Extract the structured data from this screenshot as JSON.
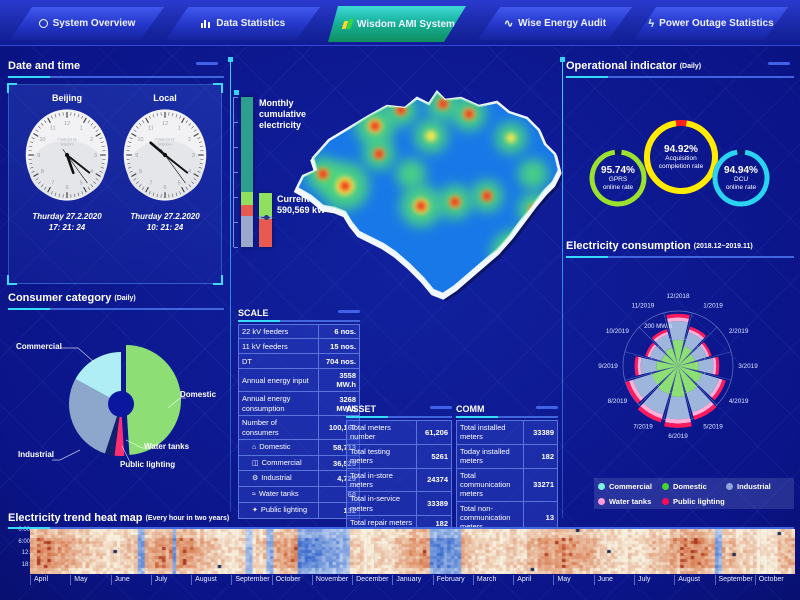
{
  "nav": {
    "tabs": [
      {
        "label": "System Overview",
        "icon": "system-overview-icon"
      },
      {
        "label": "Data Statistics",
        "icon": "bar-chart-icon"
      },
      {
        "label": "Wisdom AMI System",
        "icon": "wisdom-logo-icon",
        "active": true
      },
      {
        "label": "Wise Energy Audit",
        "icon": "pulse-wave-icon"
      },
      {
        "label": "Power Outage Statistics",
        "icon": "lightning-icon"
      }
    ]
  },
  "datetime_panel": {
    "title": "Date and time",
    "clocks": [
      {
        "name": "Beijing",
        "brand1": "Powered by",
        "brand2": "Wisdom",
        "date": "Thurday 27.2.2020",
        "time": "17: 21: 24",
        "h": 17,
        "m": 21,
        "s": 24
      },
      {
        "name": "Local",
        "brand1": "Powered by",
        "brand2": "Wisdom",
        "date": "Thurday 27.2.2020",
        "time": "10: 21: 24",
        "h": 10,
        "m": 21,
        "s": 24
      }
    ]
  },
  "consumer_panel": {
    "title": "Consumer category",
    "subtitle": "(Daily)"
  },
  "operational_panel": {
    "title": "Operational indicator",
    "subtitle": "(Daily)"
  },
  "consumption_panel": {
    "title": "Electricity consumption",
    "subtitle": "(2018.12~2019.11)"
  },
  "heatmap_panel": {
    "title": "Electricity trend heat map",
    "subtitle": "(Every hour in two years)"
  },
  "tables": {
    "scale": {
      "title": "SCALE",
      "rows": [
        {
          "label": "22 kV feeders",
          "value": "6 nos."
        },
        {
          "label": "11 kV feeders",
          "value": "15 nos."
        },
        {
          "label": "DT",
          "value": "704 nos."
        },
        {
          "label": "Annual energy input",
          "value": "3558 MW.h"
        },
        {
          "label": "Annual energy consumption",
          "value": "3268 MW.h"
        },
        {
          "label": "Number of consumers",
          "value": "100,167"
        },
        {
          "label": "Domestic",
          "value": "58,713",
          "indent": true,
          "icon": "house-icon"
        },
        {
          "label": "Commercial",
          "value": "36,525",
          "indent": true,
          "icon": "shop-icon"
        },
        {
          "label": "Industrial",
          "value": "4,729",
          "indent": true,
          "icon": "factory-icon"
        },
        {
          "label": "Water tanks",
          "value": "68",
          "indent": true,
          "icon": "water-icon"
        },
        {
          "label": "Public lighting",
          "value": "132",
          "indent": true,
          "icon": "lamp-icon"
        }
      ]
    },
    "asset": {
      "title": "ASSET",
      "rows": [
        {
          "label": "Total meters number",
          "value": "61,206"
        },
        {
          "label": "Total testing meters",
          "value": "5261"
        },
        {
          "label": "Total in-store meters",
          "value": "24374"
        },
        {
          "label": "Total in-service meters",
          "value": "33389"
        },
        {
          "label": "Total repair meters",
          "value": "182"
        },
        {
          "label": "Total condemned meters",
          "value": "0"
        }
      ]
    },
    "comm": {
      "title": "COMM",
      "rows": [
        {
          "label": "Total installed meters",
          "value": "33389"
        },
        {
          "label": "Today installed meters",
          "value": "182"
        },
        {
          "label": "Total communication meters",
          "value": "33271"
        },
        {
          "label": "Total non-communication meters",
          "value": "13"
        },
        {
          "label": "Total commissioning meters",
          "value": "105"
        }
      ]
    }
  },
  "chart_data": [
    {
      "id": "consumer_pie",
      "type": "pie",
      "title": "Consumer category (Daily)",
      "slices": [
        {
          "label": "Domestic",
          "value": 49,
          "color": "#8ede76"
        },
        {
          "label": "Water tanks",
          "value": 3,
          "color": "#ff2e70"
        },
        {
          "label": "Public lighting",
          "value": 3,
          "color": "#13206e"
        },
        {
          "label": "Industrial",
          "value": 28,
          "color": "#8ca6cc"
        },
        {
          "label": "Commercial",
          "value": 17,
          "color": "#aeeef4"
        }
      ]
    },
    {
      "id": "operational_gauges",
      "type": "donut-gauges",
      "gauges": [
        {
          "value": "95.74%",
          "pct": 95.74,
          "line1": "GPRS",
          "line2": "online rate",
          "color": "#9be22e",
          "gap_color": "#0b1670"
        },
        {
          "value": "94.92%",
          "pct": 94.92,
          "line1": "Acquisition",
          "line2": "completion rate",
          "color": "#ffec00",
          "gap_color": "#ff2020"
        },
        {
          "value": "94.94%",
          "pct": 94.94,
          "line1": "DCU",
          "line2": "online rate",
          "color": "#2ad4f0",
          "gap_color": "#0b1670"
        }
      ]
    },
    {
      "id": "monthly_bar",
      "type": "stacked-bar",
      "label": "Monthly cumulative electricity",
      "segments": [
        {
          "name": "teal",
          "color": "#2e9e8e",
          "pct": 63
        },
        {
          "name": "green",
          "color": "#8ee05e",
          "pct": 9
        },
        {
          "name": "red",
          "color": "#e85a50",
          "pct": 7
        },
        {
          "name": "lavender",
          "color": "#9aa8cc",
          "pct": 21
        }
      ]
    },
    {
      "id": "current_load_bar",
      "type": "stacked-bar",
      "label": "Current load",
      "value": "590,569 kW",
      "marker_pct": 44,
      "segments": [
        {
          "name": "green",
          "color": "#8ee05e",
          "pct": 42
        },
        {
          "name": "gap",
          "color": "#8fa8d0",
          "pct": 6
        },
        {
          "name": "red",
          "color": "#e85a50",
          "pct": 52
        }
      ]
    },
    {
      "id": "consumption_rose",
      "type": "polar-stacked-bar",
      "unit": "MW.h",
      "radial_tick": "200 MW.h",
      "axis_max": 200,
      "months": [
        "12/2018",
        "1/2019",
        "2/2019",
        "3/2019",
        "4/2019",
        "5/2019",
        "6/2019",
        "7/2019",
        "8/2019",
        "9/2019",
        "10/2019",
        "11/2019"
      ],
      "totals": [
        190,
        150,
        128,
        150,
        182,
        205,
        225,
        215,
        200,
        158,
        125,
        140
      ],
      "stack_fractions": [
        {
          "name": "Domestic",
          "f": 0.5,
          "color": "#8ede76"
        },
        {
          "name": "Industrial",
          "f": 0.36,
          "color": "#9fb6dc"
        },
        {
          "name": "Water tanks",
          "f": 0.07,
          "color": "#ffb0d8"
        },
        {
          "name": "Public lighting",
          "f": 0.07,
          "color": "#ff1a5e"
        }
      ],
      "legend": [
        {
          "label": "Commercial",
          "color": "#7ef0df"
        },
        {
          "label": "Domestic",
          "color": "#44d62c"
        },
        {
          "label": "Industrial",
          "color": "#8fa6d6"
        },
        {
          "label": "Water tanks",
          "color": "#ff9ce0"
        },
        {
          "label": "Public lighting",
          "color": "#ff0a54"
        }
      ]
    },
    {
      "id": "trend_heatmap",
      "type": "heatmap",
      "y_labels": [
        "0:00",
        "6:00",
        "12:",
        "18:"
      ],
      "x_months": [
        "April",
        "May",
        "June",
        "July",
        "August",
        "September",
        "October",
        "November",
        "December",
        "January",
        "February",
        "March",
        "April",
        "May",
        "June",
        "July",
        "August",
        "September",
        "October"
      ],
      "cold_bands": [
        [
          0.349,
          0.418
        ],
        [
          0.52,
          0.562
        ]
      ],
      "cold_stripes": [
        0.144,
        0.186,
        0.285,
        0.31,
        0.899
      ]
    }
  ]
}
